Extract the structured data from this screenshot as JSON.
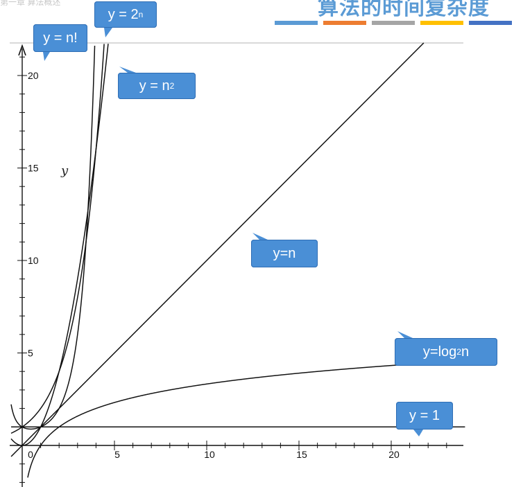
{
  "header": {
    "title": "算法的时间复杂度",
    "crumb": "第一章 算法概述",
    "stripe_colors": [
      "#5b9bd5",
      "#ed7d31",
      "#a5a5a5",
      "#ffc000",
      "#4472c4"
    ]
  },
  "theme": {
    "callout_fill": "#4a8fd6",
    "callout_stroke": "#2e6db4",
    "curve": "#111111"
  },
  "chart_data": {
    "type": "line",
    "ylabel": "y",
    "xlim": [
      -0.6,
      24
    ],
    "ylim": [
      -2,
      22
    ],
    "x_ticks": [
      0,
      5,
      10,
      15,
      20
    ],
    "y_ticks": [
      5,
      10,
      15,
      20
    ],
    "series": [
      {
        "name": "y = 1",
        "key": "const",
        "label_main": "y = 1",
        "label_sup": "",
        "label_sub": ""
      },
      {
        "name": "y=log2n",
        "key": "log",
        "label_main": "y=log",
        "label_sub": "2",
        "label_tail": "n"
      },
      {
        "name": "y=n",
        "key": "linear",
        "label_main": "y=n",
        "label_sup": "",
        "label_sub": ""
      },
      {
        "name": "y = n2",
        "key": "square",
        "label_main": "y = n",
        "label_sup": "2",
        "label_sub": ""
      },
      {
        "name": "y = 2n",
        "key": "exp",
        "label_main": "y = 2",
        "label_sup": "n",
        "label_sub": ""
      },
      {
        "name": "y = n!",
        "key": "fact",
        "label_main": "y = n!",
        "label_sup": "",
        "label_sub": ""
      }
    ]
  }
}
